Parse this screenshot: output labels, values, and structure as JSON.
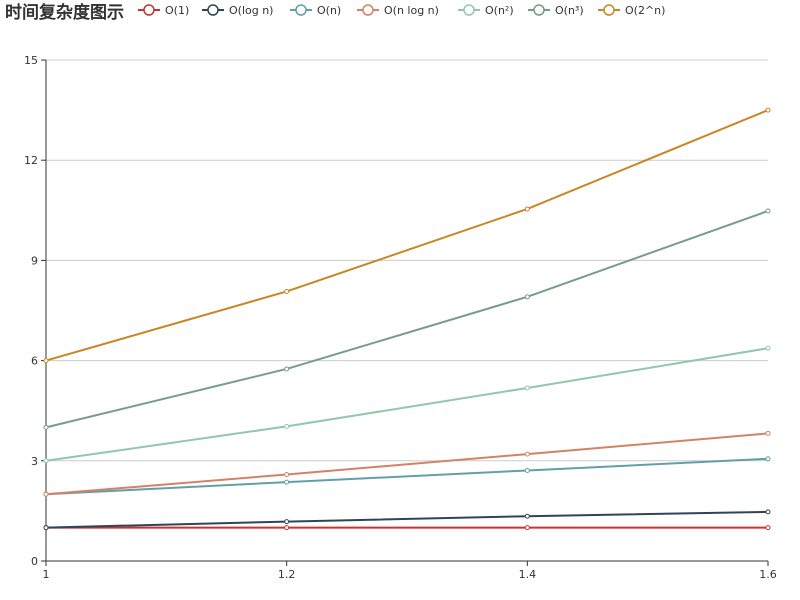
{
  "chart_data": {
    "type": "line",
    "title": "时间复杂度图示",
    "x": [
      "1",
      "1.2",
      "1.4",
      "1.6"
    ],
    "xlim": [
      1,
      1.6
    ],
    "ylim": [
      0,
      15
    ],
    "y_ticks": [
      0,
      3,
      6,
      9,
      12,
      15
    ],
    "grid": "horizontal",
    "legend_position": "top",
    "series": [
      {
        "name": "O(1)",
        "color": "#c23531",
        "values": [
          1,
          1,
          1,
          1
        ]
      },
      {
        "name": "O(log n)",
        "color": "#2f4554",
        "values": [
          1,
          1.18,
          1.34,
          1.47
        ]
      },
      {
        "name": "O(n)",
        "color": "#61a0a8",
        "values": [
          2,
          2.36,
          2.71,
          3.06
        ]
      },
      {
        "name": "O(n log n)",
        "color": "#d48265",
        "values": [
          2,
          2.59,
          3.2,
          3.82
        ]
      },
      {
        "name": "O(n²)",
        "color": "#91c7ae",
        "values": [
          3,
          4.03,
          5.18,
          6.37
        ]
      },
      {
        "name": "O(n³)",
        "color": "#749f83",
        "values": [
          4,
          5.75,
          7.91,
          10.48
        ]
      },
      {
        "name": "O(2^n)",
        "color": "#ca8622",
        "values": [
          6,
          8.07,
          10.54,
          13.5
        ]
      }
    ]
  }
}
